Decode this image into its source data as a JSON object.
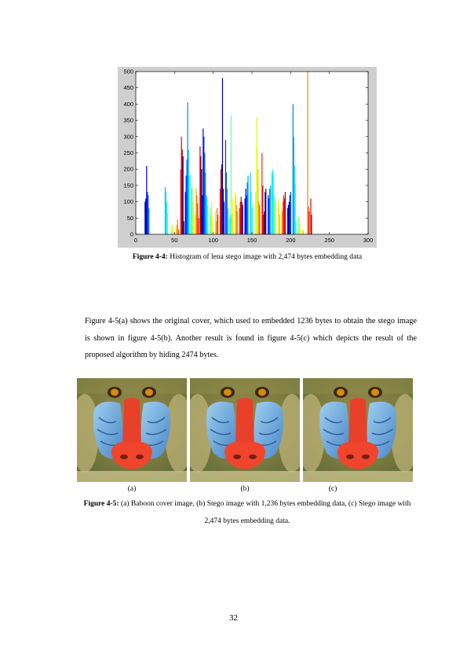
{
  "figure_4_4": {
    "label": "Figure 4-4:",
    "caption": " Histogram of lena stego image with 2,474 bytes embedding data"
  },
  "paragraph": "Figure 4-5(a) shows the original cover, which used to embedded 1236 bytes to obtain the stego image is shown in figure 4-5(b). Another result is found in figure 4-5(c) which depicts the result of the proposed algorithm by hiding 2474 bytes.",
  "figure_4_5": {
    "label": "Figure 4-5:",
    "caption": " (a) Baboon cover image, (b) Stego image with 1,236 bytes embedding data, (c) Stego image with 2,474 bytes embedding data.",
    "sub_labels": [
      "(a)",
      "(b)",
      "(c)"
    ]
  },
  "page_number": "32",
  "chart_data": {
    "type": "bar",
    "title": "",
    "xlabel": "",
    "ylabel": "",
    "xlim": [
      0,
      300
    ],
    "ylim": [
      0,
      500
    ],
    "x_ticks": [
      "0",
      "50",
      "100",
      "150",
      "200",
      "250",
      "300"
    ],
    "y_ticks": [
      "0",
      "50",
      "100",
      "150",
      "200",
      "250",
      "300",
      "350",
      "400",
      "450",
      "500"
    ],
    "grid": false,
    "legend": "none",
    "colormap": "jet",
    "bars": [
      [
        12,
        100
      ],
      [
        13,
        110
      ],
      [
        14,
        210
      ],
      [
        15,
        130
      ],
      [
        16,
        120
      ],
      [
        17,
        80
      ],
      [
        38,
        145
      ],
      [
        39,
        130
      ],
      [
        40,
        100
      ],
      [
        41,
        65
      ],
      [
        46,
        10
      ],
      [
        47,
        25
      ],
      [
        48,
        30
      ],
      [
        52,
        20
      ],
      [
        53,
        30
      ],
      [
        54,
        45
      ],
      [
        55,
        15
      ],
      [
        58,
        200
      ],
      [
        59,
        300
      ],
      [
        60,
        260
      ],
      [
        61,
        240
      ],
      [
        62,
        40
      ],
      [
        64,
        130
      ],
      [
        65,
        180
      ],
      [
        66,
        230
      ],
      [
        67,
        405
      ],
      [
        68,
        260
      ],
      [
        69,
        180
      ],
      [
        71,
        185
      ],
      [
        72,
        140
      ],
      [
        73,
        145
      ],
      [
        74,
        100
      ],
      [
        75,
        60
      ],
      [
        77,
        60
      ],
      [
        78,
        140
      ],
      [
        79,
        120
      ],
      [
        80,
        95
      ],
      [
        81,
        50
      ],
      [
        83,
        270
      ],
      [
        84,
        240
      ],
      [
        85,
        200
      ],
      [
        86,
        120
      ],
      [
        87,
        325
      ],
      [
        88,
        300
      ],
      [
        89,
        250
      ],
      [
        90,
        190
      ],
      [
        91,
        120
      ],
      [
        92,
        115
      ],
      [
        93,
        90
      ],
      [
        96,
        60
      ],
      [
        97,
        80
      ],
      [
        98,
        100
      ],
      [
        99,
        50
      ],
      [
        103,
        70
      ],
      [
        104,
        40
      ],
      [
        105,
        80
      ],
      [
        106,
        60
      ],
      [
        109,
        140
      ],
      [
        110,
        200
      ],
      [
        111,
        215
      ],
      [
        112,
        480
      ],
      [
        113,
        140
      ],
      [
        114,
        100
      ],
      [
        116,
        290
      ],
      [
        117,
        190
      ],
      [
        118,
        140
      ],
      [
        119,
        80
      ],
      [
        121,
        50
      ],
      [
        122,
        60
      ],
      [
        123,
        365
      ],
      [
        124,
        60
      ],
      [
        125,
        110
      ],
      [
        128,
        130
      ],
      [
        129,
        120
      ],
      [
        130,
        90
      ],
      [
        131,
        70
      ],
      [
        134,
        80
      ],
      [
        135,
        100
      ],
      [
        136,
        115
      ],
      [
        137,
        100
      ],
      [
        138,
        90
      ],
      [
        141,
        110
      ],
      [
        142,
        140
      ],
      [
        143,
        120
      ],
      [
        144,
        160
      ],
      [
        145,
        180
      ],
      [
        148,
        190
      ],
      [
        149,
        130
      ],
      [
        150,
        80
      ],
      [
        151,
        95
      ],
      [
        155,
        130
      ],
      [
        156,
        360
      ],
      [
        157,
        270
      ],
      [
        158,
        200
      ],
      [
        159,
        100
      ],
      [
        160,
        90
      ],
      [
        163,
        250
      ],
      [
        164,
        150
      ],
      [
        165,
        60
      ],
      [
        166,
        70
      ],
      [
        167,
        130
      ],
      [
        168,
        140
      ],
      [
        171,
        120
      ],
      [
        172,
        110
      ],
      [
        173,
        140
      ],
      [
        174,
        150
      ],
      [
        176,
        190
      ],
      [
        177,
        200
      ],
      [
        178,
        180
      ],
      [
        179,
        120
      ],
      [
        180,
        100
      ],
      [
        184,
        110
      ],
      [
        185,
        90
      ],
      [
        186,
        60
      ],
      [
        189,
        70
      ],
      [
        190,
        100
      ],
      [
        191,
        120
      ],
      [
        192,
        110
      ],
      [
        193,
        130
      ],
      [
        196,
        80
      ],
      [
        197,
        90
      ],
      [
        198,
        100
      ],
      [
        199,
        120
      ],
      [
        200,
        130
      ],
      [
        203,
        400
      ],
      [
        204,
        300
      ],
      [
        205,
        210
      ],
      [
        206,
        155
      ],
      [
        207,
        40
      ],
      [
        210,
        55
      ],
      [
        211,
        50
      ],
      [
        212,
        30
      ],
      [
        215,
        15
      ],
      [
        216,
        10
      ],
      [
        222,
        500
      ],
      [
        223,
        85
      ],
      [
        224,
        70
      ],
      [
        226,
        110
      ],
      [
        227,
        60
      ]
    ]
  }
}
